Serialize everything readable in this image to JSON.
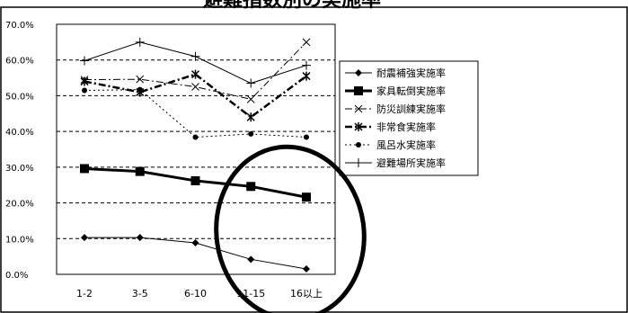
{
  "chart_data": {
    "type": "line",
    "title": "避難指数別の実施率",
    "xlabel": "",
    "ylabel": "",
    "categories": [
      "1-2",
      "3-5",
      "6-10",
      "11-15",
      "16以上"
    ],
    "ylim": [
      0,
      70
    ],
    "y_ticks": [
      "0.0%",
      "10.0%",
      "20.0%",
      "30.0%",
      "40.0%",
      "50.0%",
      "60.0%",
      "70.0%"
    ],
    "grid": true,
    "legend_position": "right",
    "series": [
      {
        "name": "耐震補強実施率",
        "values": [
          10.3,
          10.3,
          8.8,
          4.2,
          1.5
        ],
        "marker": "diamond",
        "line": "solid",
        "width": 1
      },
      {
        "name": "家具転倒実施率",
        "values": [
          29.6,
          28.8,
          26.2,
          24.6,
          21.6
        ],
        "marker": "square",
        "line": "solid",
        "width": 3
      },
      {
        "name": "防災訓練実施率",
        "values": [
          54.5,
          54.6,
          52.5,
          49.0,
          65.0
        ],
        "marker": "x",
        "line": "dashdot",
        "width": 1
      },
      {
        "name": "非常食実施率",
        "values": [
          54.0,
          51.0,
          56.0,
          44.0,
          55.5
        ],
        "marker": "star",
        "line": "dashdot",
        "width": 2.5
      },
      {
        "name": "風呂水実施率",
        "values": [
          51.5,
          51.7,
          38.4,
          39.3,
          38.4
        ],
        "marker": "circle",
        "line": "dotted",
        "width": 1
      },
      {
        "name": "避難場所実施率",
        "values": [
          59.8,
          65.0,
          61.0,
          53.5,
          58.5
        ],
        "marker": "plus",
        "line": "solid",
        "width": 1
      }
    ]
  },
  "colors": {
    "line": "#000000",
    "grid": "#000000",
    "annotation": "#000000",
    "background": "#ffffff"
  }
}
